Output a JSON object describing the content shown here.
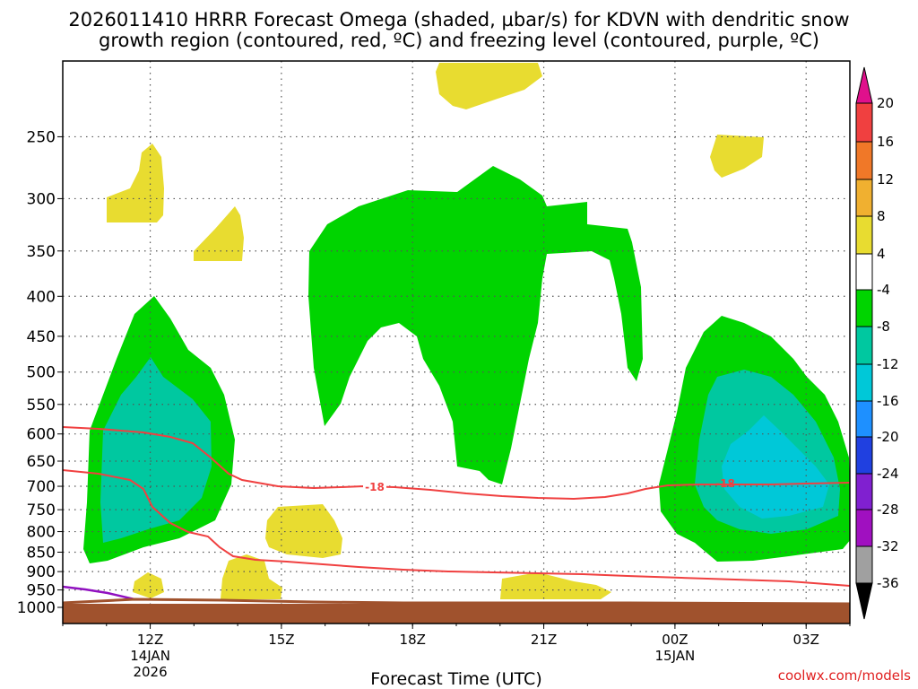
{
  "chart_data": {
    "type": "heatmap",
    "title_line1": "2026011410 HRRR Forecast Omega (shaded, µbar/s) for KDVN with dendritic snow",
    "title_line2": "growth region (contoured, red, ºC) and freezing level (contoured, purple, ºC)",
    "xlabel": "Forecast Time (UTC)",
    "credit": "coolwx.com/models",
    "y_axis": {
      "scale": "pressure (log)",
      "reversed": true,
      "range_hpa": [
        1000,
        200
      ],
      "ticks": [
        "250",
        "300",
        "350",
        "400",
        "450",
        "500",
        "550",
        "600",
        "650",
        "700",
        "750",
        "800",
        "850",
        "900",
        "950",
        "1000"
      ]
    },
    "x_axis": {
      "ticks": [
        {
          "label": "12Z",
          "sub1": "14JAN",
          "sub2": "2026"
        },
        {
          "label": "15Z",
          "sub1": "",
          "sub2": ""
        },
        {
          "label": "18Z",
          "sub1": "",
          "sub2": ""
        },
        {
          "label": "21Z",
          "sub1": "",
          "sub2": ""
        },
        {
          "label": "00Z",
          "sub1": "15JAN",
          "sub2": ""
        },
        {
          "label": "03Z",
          "sub1": "",
          "sub2": ""
        }
      ],
      "range_hours_from_12Z": [
        -2,
        16
      ]
    },
    "grid": true,
    "colorbar": {
      "labels": [
        "20",
        "16",
        "12",
        "8",
        "4",
        "-4",
        "-8",
        "-12",
        "-16",
        "-20",
        "-24",
        "-28",
        "-32",
        "-36"
      ],
      "colors": {
        "gt20": "#e0108c",
        "16_20": "#f04040",
        "12_16": "#f07828",
        "8_12": "#f0b030",
        "4_8": "#e8dc30",
        "m4_4": "#ffffff",
        "m8_m4": "#00d400",
        "m12_m8": "#00c8a0",
        "m16_m12": "#00c8d8",
        "m20_m16": "#1e90ff",
        "m24_m20": "#2040e0",
        "m28_m24": "#8020d0",
        "m32_m28": "#a010c0",
        "m36_m32": "#a0a0a0",
        "lt_m36": "#000000"
      }
    },
    "contours": {
      "dgz_label": "-18",
      "dgz_color": "#f04040",
      "freezing_color": "#9010c0"
    },
    "ground_color": "#a0522d"
  }
}
